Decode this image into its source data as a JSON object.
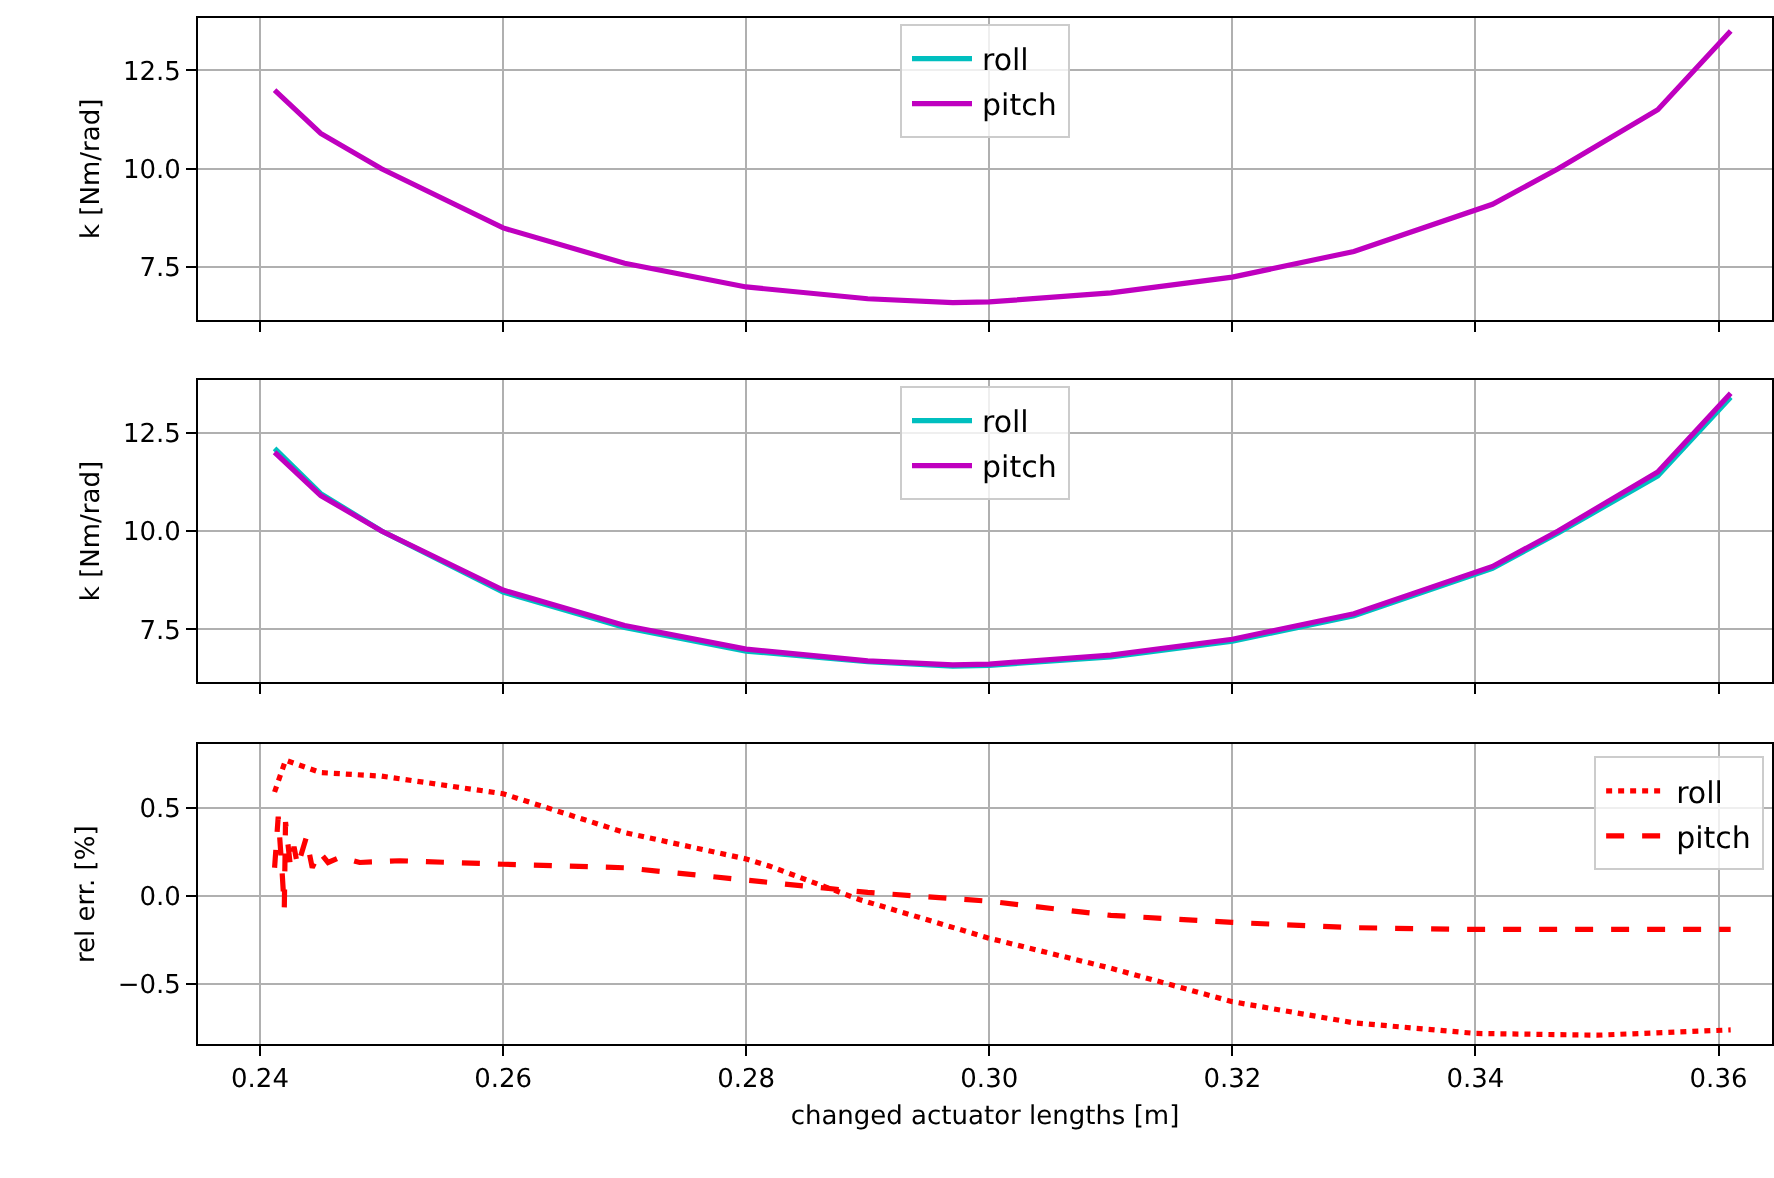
{
  "chart_data": [
    {
      "type": "line",
      "x": [
        0.2412,
        0.245,
        0.25,
        0.26,
        0.27,
        0.28,
        0.29,
        0.297,
        0.3,
        0.31,
        0.32,
        0.33,
        0.3414,
        0.3468,
        0.355,
        0.361
      ],
      "ylabel": "k [Nm/rad]",
      "xlim": [
        0.2349,
        0.3644
      ],
      "xticks": [
        0.24,
        0.26,
        0.28,
        0.3,
        0.32,
        0.34,
        0.36
      ],
      "ylim": [
        6.17,
        13.83
      ],
      "yticks": [
        7.5,
        {
          "value": 10,
          "label": "10.0"
        },
        12.5
      ],
      "grid": true,
      "legend": "top",
      "tick_labels": "y",
      "series": [
        {
          "name": "roll",
          "color": "#00bfbf",
          "line_style": "solid",
          "values": [
            null,
            null,
            null,
            null,
            null,
            null,
            null,
            null,
            null,
            null,
            null,
            null,
            null,
            null,
            null,
            null
          ]
        },
        {
          "name": "pitch",
          "color": "#bf00bf",
          "line_style": "solid",
          "values": [
            12.0,
            10.9,
            10.0,
            8.5,
            7.6,
            7.0,
            6.7,
            6.6,
            6.62,
            6.85,
            7.25,
            7.9,
            9.1,
            10.0,
            11.5,
            13.5
          ]
        }
      ]
    },
    {
      "type": "line",
      "x": [
        0.2412,
        0.245,
        0.25,
        0.26,
        0.27,
        0.28,
        0.29,
        0.297,
        0.3,
        0.31,
        0.32,
        0.33,
        0.3414,
        0.3468,
        0.355,
        0.361
      ],
      "ylabel": "k [Nm/rad]",
      "xlim": [
        0.2349,
        0.3644
      ],
      "xticks": [
        0.24,
        0.26,
        0.28,
        0.3,
        0.32,
        0.34,
        0.36
      ],
      "ylim": [
        6.17,
        13.83
      ],
      "yticks": [
        7.5,
        {
          "value": 10,
          "label": "10.0"
        },
        12.5
      ],
      "grid": true,
      "legend": "top",
      "tick_labels": "y",
      "series": [
        {
          "name": "roll",
          "color": "#00bfbf",
          "line_style": "solid",
          "values": [
            12.1,
            10.95,
            10.0,
            8.45,
            7.55,
            6.95,
            6.68,
            6.57,
            6.59,
            6.8,
            7.2,
            7.85,
            9.05,
            9.95,
            11.4,
            13.4
          ]
        },
        {
          "name": "pitch",
          "color": "#bf00bf",
          "line_style": "solid",
          "values": [
            12.0,
            10.9,
            10.0,
            8.5,
            7.6,
            7.0,
            6.7,
            6.6,
            6.62,
            6.85,
            7.25,
            7.9,
            9.1,
            10.0,
            11.5,
            13.5
          ]
        }
      ]
    },
    {
      "type": "line",
      "xlabel": "changed actuator lengths [m]",
      "ylabel": "rel err. [%]",
      "xlim": [
        0.2349,
        0.3644
      ],
      "xticks": [
        0.24,
        0.26,
        0.28,
        {
          "value": 0.3,
          "label": "0.30"
        },
        0.32,
        0.34,
        0.36
      ],
      "ylim": [
        -0.84,
        0.86
      ],
      "yticks": [
        {
          "value": -0.5,
          "label": "−0.5"
        },
        {
          "value": 0,
          "label": "0.0"
        },
        0.5
      ],
      "grid": true,
      "legend": "top right",
      "series": [
        {
          "name": "roll",
          "color": "#ff0000",
          "line_style": "dotted",
          "x": [
            0.2412,
            0.2421,
            0.245,
            0.25,
            0.26,
            0.27,
            0.28,
            0.2819,
            0.2893,
            0.3,
            0.31,
            0.32,
            0.33,
            0.34,
            0.35,
            0.361
          ],
          "values": [
            0.59,
            0.77,
            0.7,
            0.68,
            0.58,
            0.36,
            0.21,
            0.17,
            -0.02,
            -0.24,
            -0.41,
            -0.6,
            -0.72,
            -0.78,
            -0.79,
            -0.76
          ]
        },
        {
          "name": "pitch",
          "color": "#ff0000",
          "line_style": "dashed",
          "x": [
            0.2412,
            0.2415,
            0.2418,
            0.242,
            0.2421,
            0.2425,
            0.2428,
            0.2431,
            0.2438,
            0.2443,
            0.2449,
            0.2456,
            0.2466,
            0.2482,
            0.2515,
            0.26,
            0.27,
            0.28,
            0.29,
            0.3,
            0.31,
            0.32,
            0.33,
            0.34,
            0.35,
            0.361
          ],
          "values": [
            0.16,
            0.45,
            0.16,
            -0.07,
            0.42,
            0.17,
            0.28,
            0.17,
            0.33,
            0.16,
            0.25,
            0.19,
            0.22,
            0.19,
            0.2,
            0.18,
            0.16,
            0.09,
            0.02,
            -0.03,
            -0.11,
            -0.15,
            -0.18,
            -0.19,
            -0.19,
            -0.19
          ]
        }
      ]
    }
  ]
}
